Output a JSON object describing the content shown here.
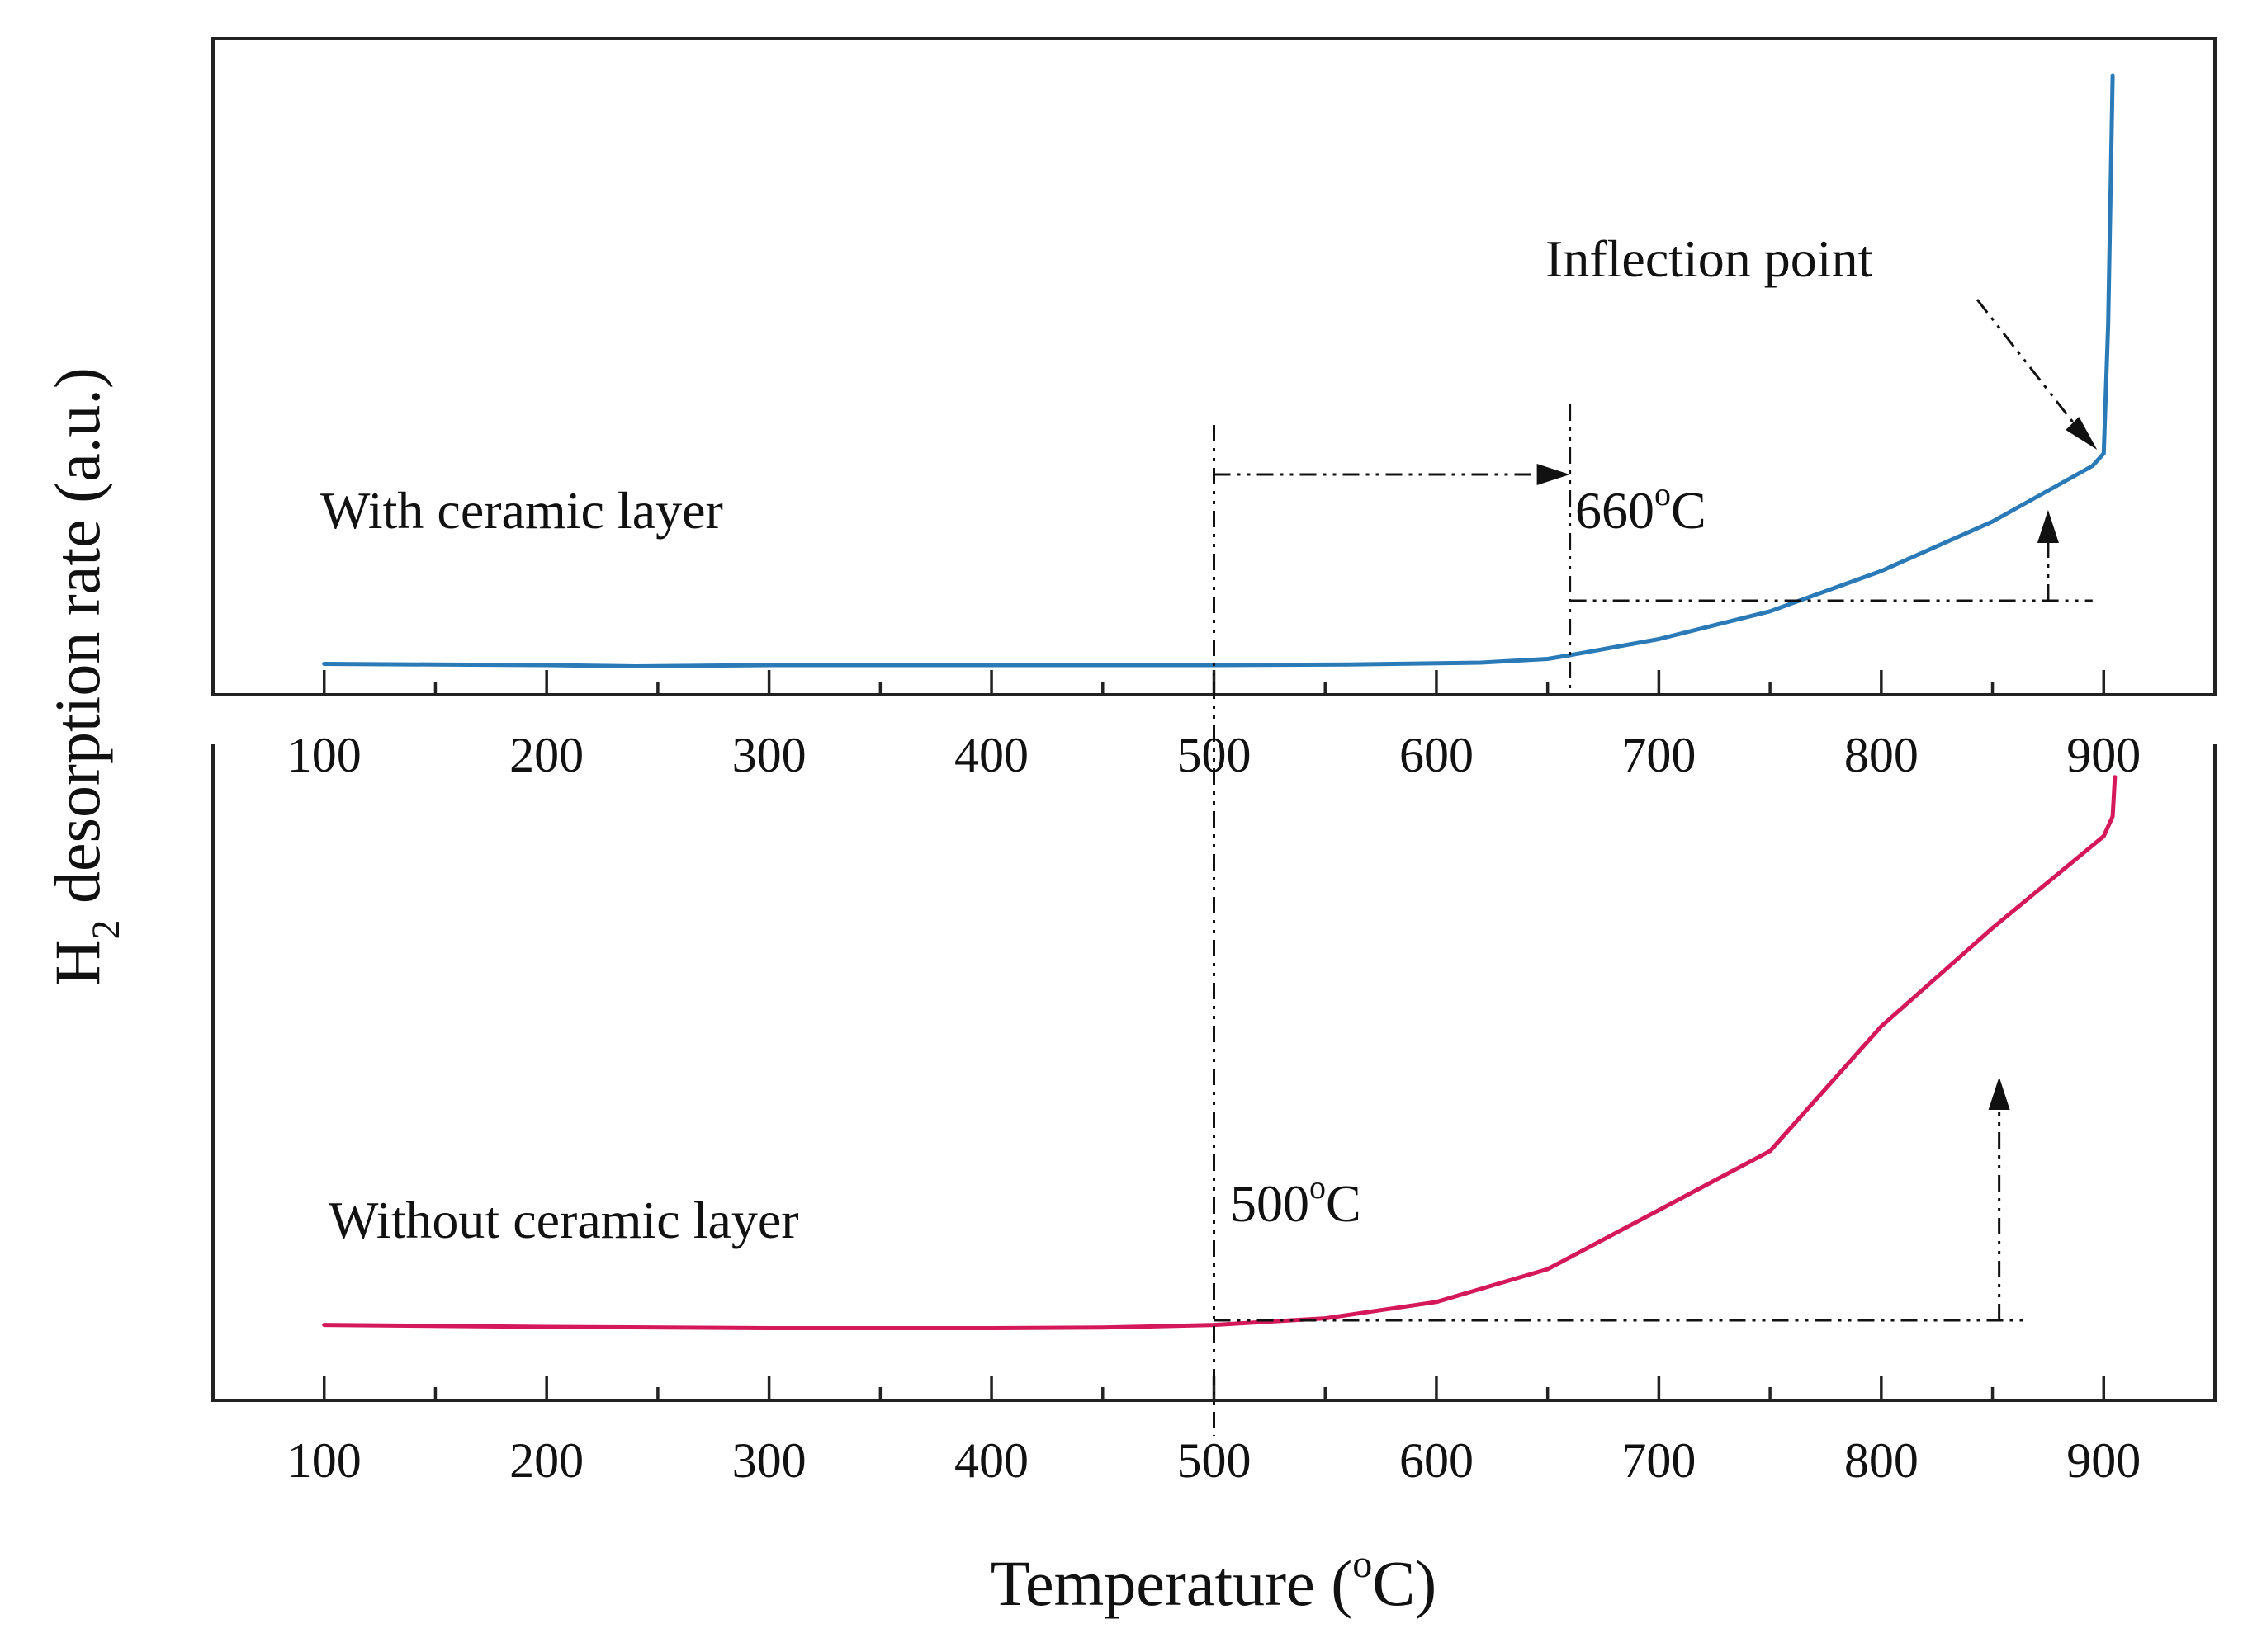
{
  "chart_data": [
    {
      "type": "line",
      "panel": "top",
      "series": [
        {
          "name": "With ceramic layer",
          "color": "#2a7ab8",
          "x": [
            100,
            150,
            200,
            240,
            300,
            400,
            500,
            560,
            620,
            650,
            660,
            700,
            750,
            800,
            850,
            880,
            895,
            900,
            902,
            904
          ],
          "y": [
            0.05,
            0.049,
            0.048,
            0.046,
            0.048,
            0.048,
            0.048,
            0.049,
            0.052,
            0.058,
            0.064,
            0.09,
            0.135,
            0.2,
            0.28,
            0.34,
            0.37,
            0.39,
            0.6,
            1.0
          ]
        }
      ],
      "xlim": [
        50,
        950
      ],
      "ylim": [
        0,
        1.06
      ],
      "x_ticks": [
        100,
        200,
        300,
        400,
        500,
        600,
        700,
        800,
        900
      ],
      "tick_labels": [
        "100",
        "200",
        "300",
        "400",
        "500",
        "600",
        "700",
        "800",
        "900"
      ],
      "label_text": "With ceramic layer",
      "onset_value": "660",
      "onset_unit": "C",
      "onset_x": 660,
      "inflection_text": "Inflection point",
      "inflection_x": 900,
      "inflection_y": 0.38
    },
    {
      "type": "line",
      "panel": "bottom",
      "series": [
        {
          "name": "Without ceramic layer",
          "color": "#d4185a",
          "x": [
            100,
            200,
            300,
            400,
            450,
            500,
            550,
            600,
            650,
            700,
            750,
            800,
            850,
            900,
            904,
            905
          ],
          "y": [
            0.115,
            0.112,
            0.11,
            0.11,
            0.111,
            0.115,
            0.125,
            0.15,
            0.2,
            0.29,
            0.38,
            0.57,
            0.72,
            0.86,
            0.89,
            0.95
          ]
        }
      ],
      "xlim": [
        50,
        950
      ],
      "ylim": [
        0,
        1.0
      ],
      "x_ticks": [
        100,
        200,
        300,
        400,
        500,
        600,
        700,
        800,
        900
      ],
      "tick_labels": [
        "100",
        "200",
        "300",
        "400",
        "500",
        "600",
        "700",
        "800",
        "900"
      ],
      "label_text": "Without ceramic layer",
      "onset_value": "500",
      "onset_unit": "C",
      "onset_x": 500
    }
  ],
  "xlabel_main": "Temperature (",
  "xlabel_sup": "o",
  "xlabel_end": "C)",
  "ylabel_main": "H",
  "ylabel_sub": "2",
  "ylabel_end": " desorption rate (a.u.)",
  "degree_sup": "o"
}
